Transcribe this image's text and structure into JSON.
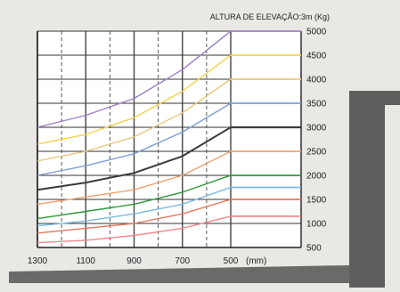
{
  "chart_data": {
    "type": "line",
    "title": "ALTURA DE ELEVAÇÃO:3m (Kg)",
    "x_tick_labels": [
      "1300",
      "1100",
      "900",
      "700",
      "500"
    ],
    "x_unit_label": "(mm)",
    "y_tick_labels": [
      "5000",
      "4500",
      "4000",
      "3500",
      "3000",
      "2500",
      "2000",
      "1500",
      "1000",
      "500"
    ],
    "x_range": [
      1300,
      500
    ],
    "y_range": [
      500,
      5000
    ],
    "grid": true,
    "series": [
      {
        "color": "#9c7fc6",
        "points": [
          [
            1300,
            3000
          ],
          [
            1100,
            3250
          ],
          [
            900,
            3600
          ],
          [
            700,
            4200
          ],
          [
            500,
            5000
          ]
        ],
        "flat": 5000
      },
      {
        "color": "#f2d24a",
        "points": [
          [
            1300,
            2650
          ],
          [
            1100,
            2850
          ],
          [
            900,
            3200
          ],
          [
            700,
            3750
          ],
          [
            500,
            4500
          ]
        ],
        "flat": 4500
      },
      {
        "color": "#e8c87a",
        "points": [
          [
            1300,
            2300
          ],
          [
            1100,
            2500
          ],
          [
            900,
            2800
          ],
          [
            700,
            3300
          ],
          [
            500,
            4000
          ]
        ],
        "flat": 4000
      },
      {
        "color": "#7d9fd6",
        "points": [
          [
            1300,
            2000
          ],
          [
            1100,
            2200
          ],
          [
            900,
            2450
          ],
          [
            700,
            2900
          ],
          [
            500,
            3500
          ]
        ],
        "flat": 3500
      },
      {
        "color": "#3a3a3a",
        "points": [
          [
            1300,
            1700
          ],
          [
            1100,
            1850
          ],
          [
            900,
            2050
          ],
          [
            700,
            2400
          ],
          [
            500,
            3000
          ]
        ],
        "flat": 3000
      },
      {
        "color": "#f0a070",
        "points": [
          [
            1300,
            1400
          ],
          [
            1100,
            1550
          ],
          [
            900,
            1700
          ],
          [
            700,
            2000
          ],
          [
            500,
            2500
          ]
        ],
        "flat": 2500
      },
      {
        "color": "#2e9a3a",
        "points": [
          [
            1300,
            1100
          ],
          [
            1100,
            1250
          ],
          [
            900,
            1400
          ],
          [
            700,
            1650
          ],
          [
            500,
            2000
          ]
        ],
        "flat": 2000
      },
      {
        "color": "#7ab8e0",
        "points": [
          [
            1300,
            950
          ],
          [
            1100,
            1050
          ],
          [
            900,
            1200
          ],
          [
            700,
            1400
          ],
          [
            500,
            1750
          ]
        ],
        "flat": 1750
      },
      {
        "color": "#e07a5a",
        "points": [
          [
            1300,
            800
          ],
          [
            1100,
            900
          ],
          [
            900,
            1000
          ],
          [
            700,
            1200
          ],
          [
            500,
            1500
          ]
        ],
        "flat": 1500
      },
      {
        "color": "#f08a8a",
        "points": [
          [
            1300,
            600
          ],
          [
            1100,
            650
          ],
          [
            900,
            750
          ],
          [
            700,
            900
          ],
          [
            500,
            1150
          ]
        ],
        "flat": 1150
      }
    ]
  }
}
